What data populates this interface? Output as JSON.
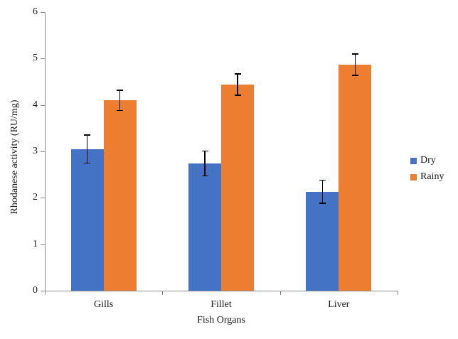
{
  "chart_data": {
    "type": "bar",
    "categories": [
      "Gills",
      "Fillet",
      "Liver"
    ],
    "series": [
      {
        "name": "Dry",
        "color": "#4472C4",
        "values": [
          3.05,
          2.74,
          2.13
        ],
        "errors": [
          0.3,
          0.27,
          0.25
        ]
      },
      {
        "name": "Rainy",
        "color": "#ED7D31",
        "values": [
          4.1,
          4.44,
          4.87
        ],
        "errors": [
          0.22,
          0.23,
          0.23
        ]
      }
    ],
    "xlabel": "Fish Organs",
    "ylabel": "Rhodanese activity  (RU/mg)",
    "ylim": [
      0,
      6
    ],
    "yticks": [
      0,
      1,
      2,
      3,
      4,
      5,
      6
    ],
    "grid": false,
    "legend_position": "right",
    "axis_color": "#8c8c8c",
    "error_bar_color": "#000000",
    "text_color": "#1a1a1a"
  }
}
